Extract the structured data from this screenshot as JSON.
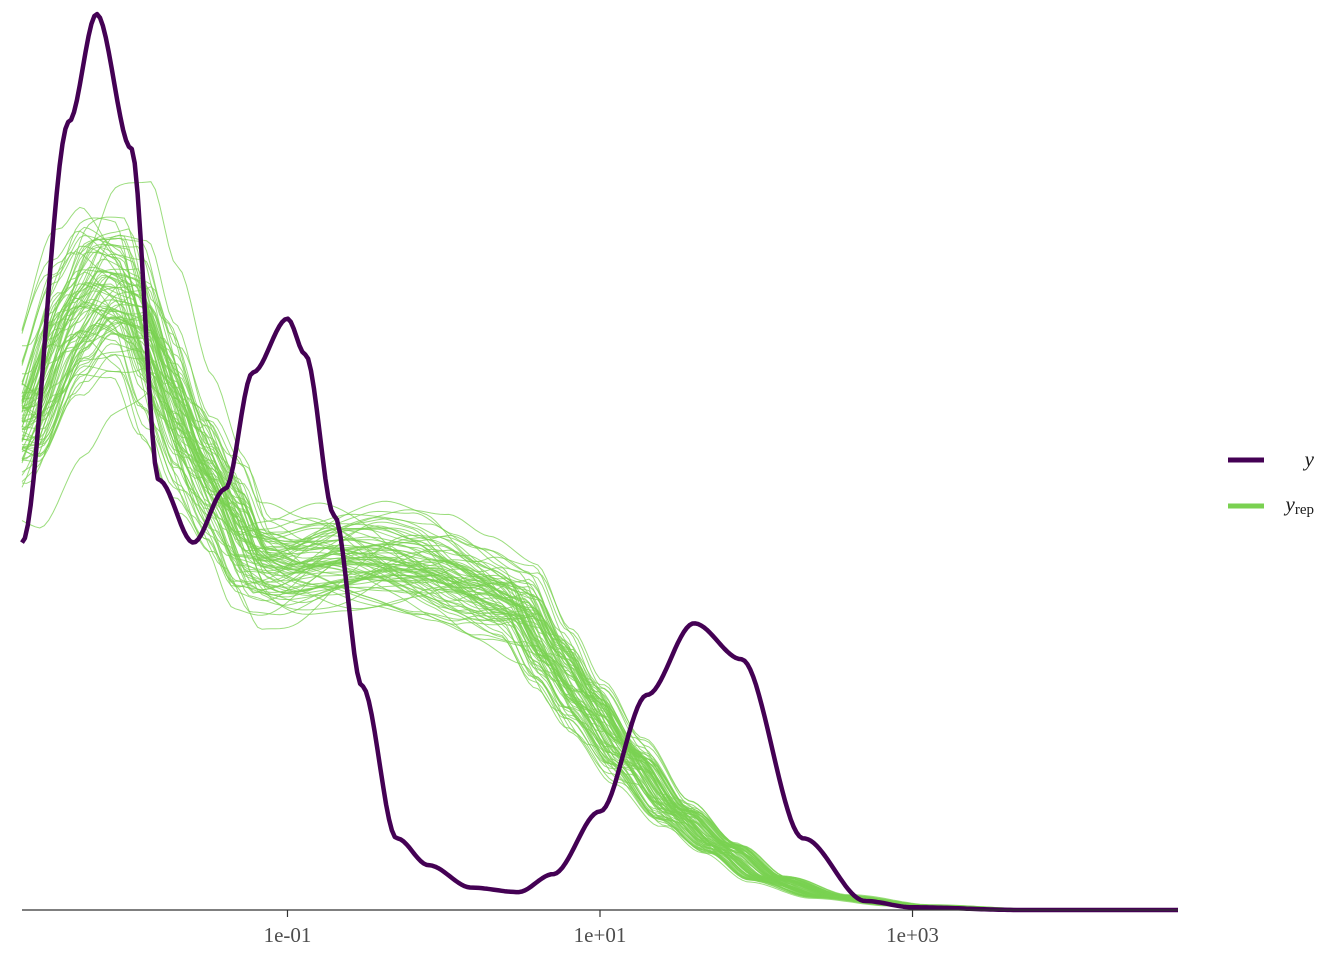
{
  "chart_data": {
    "type": "line",
    "title": "",
    "xlabel": "",
    "ylabel": "",
    "x_scale": "log10",
    "xlim": [
      0.002,
      50000
    ],
    "ylim": [
      0,
      1
    ],
    "grid": false,
    "legend_position": "right",
    "x_ticks": [
      {
        "value": 0.1,
        "label": "1e-01"
      },
      {
        "value": 10,
        "label": "1e+01"
      },
      {
        "value": 1000,
        "label": "1e+03"
      }
    ],
    "series": [
      {
        "name": "y",
        "color": "#440154",
        "x": [
          0.002,
          0.004,
          0.006,
          0.01,
          0.015,
          0.025,
          0.04,
          0.06,
          0.1,
          0.13,
          0.2,
          0.3,
          0.5,
          0.8,
          1.5,
          3,
          5,
          10,
          20,
          40,
          80,
          200,
          500,
          1000,
          5000,
          50000
        ],
        "values": [
          0.41,
          0.88,
          1.0,
          0.85,
          0.48,
          0.41,
          0.47,
          0.6,
          0.66,
          0.62,
          0.44,
          0.25,
          0.08,
          0.05,
          0.025,
          0.02,
          0.04,
          0.11,
          0.24,
          0.32,
          0.28,
          0.08,
          0.01,
          0.003,
          0.0,
          0.0
        ]
      },
      {
        "name": "y_rep",
        "color": "#7ad151",
        "draws": 80,
        "x": [
          0.002,
          0.004,
          0.006,
          0.01,
          0.015,
          0.025,
          0.04,
          0.06,
          0.1,
          0.2,
          0.4,
          0.8,
          1.5,
          3,
          5,
          8,
          15,
          30,
          60,
          120,
          300,
          1000,
          5000,
          50000
        ],
        "values": [
          0.54,
          0.65,
          0.69,
          0.68,
          0.6,
          0.51,
          0.45,
          0.39,
          0.38,
          0.39,
          0.39,
          0.38,
          0.36,
          0.34,
          0.28,
          0.23,
          0.17,
          0.11,
          0.07,
          0.035,
          0.015,
          0.005,
          0.001,
          0.0
        ]
      }
    ]
  },
  "legend": {
    "items": [
      {
        "label": "y",
        "subscript": "",
        "color": "#440154"
      },
      {
        "label": "y",
        "subscript": "rep",
        "color": "#7ad151"
      }
    ]
  }
}
